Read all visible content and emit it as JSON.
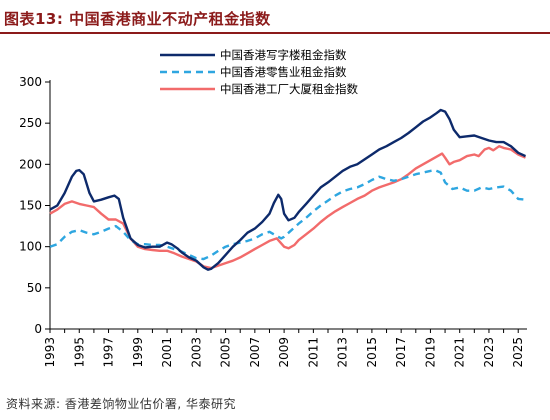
{
  "title": "图表13:  中国香港商业不动产租金指数",
  "source": "资料来源: 香港差饷物业估价署, 华泰研究",
  "colors": {
    "title": "#8b1a1a",
    "office": "#0d2a6b",
    "retail": "#2ea6e0",
    "industrial": "#f26b6b",
    "axis": "#000000"
  },
  "chart_data": {
    "type": "line",
    "title": "图表13:  中国香港商业不动产租金指数",
    "xlabel": "",
    "ylabel": "",
    "xlim": [
      1993,
      2025.6
    ],
    "ylim": [
      0,
      300
    ],
    "yticks": [
      0,
      50,
      100,
      150,
      200,
      250,
      300
    ],
    "xticks": [
      1993,
      1995,
      1997,
      1999,
      2001,
      2003,
      2005,
      2007,
      2009,
      2011,
      2013,
      2015,
      2017,
      2019,
      2021,
      2023,
      2025
    ],
    "grid": false,
    "legend_position": "top-right",
    "series": [
      {
        "name": "中国香港写字楼租金指数",
        "style": "solid",
        "color": "#0d2a6b",
        "points": [
          [
            1993,
            145
          ],
          [
            1993.5,
            150
          ],
          [
            1994,
            165
          ],
          [
            1994.5,
            185
          ],
          [
            1994.8,
            192
          ],
          [
            1995,
            193
          ],
          [
            1995.3,
            188
          ],
          [
            1995.7,
            165
          ],
          [
            1996,
            155
          ],
          [
            1996.5,
            157
          ],
          [
            1997,
            160
          ],
          [
            1997.4,
            162
          ],
          [
            1997.7,
            158
          ],
          [
            1998,
            135
          ],
          [
            1998.5,
            110
          ],
          [
            1999,
            102
          ],
          [
            1999.5,
            99
          ],
          [
            2000,
            100
          ],
          [
            2000.5,
            100
          ],
          [
            2001,
            105
          ],
          [
            2001.3,
            103
          ],
          [
            2001.7,
            98
          ],
          [
            2002,
            93
          ],
          [
            2002.5,
            87
          ],
          [
            2003,
            83
          ],
          [
            2003.5,
            75
          ],
          [
            2003.8,
            72
          ],
          [
            2004,
            73
          ],
          [
            2004.5,
            80
          ],
          [
            2005,
            90
          ],
          [
            2005.5,
            100
          ],
          [
            2006,
            108
          ],
          [
            2006.5,
            117
          ],
          [
            2007,
            122
          ],
          [
            2007.5,
            130
          ],
          [
            2008,
            140
          ],
          [
            2008.3,
            153
          ],
          [
            2008.6,
            163
          ],
          [
            2008.8,
            158
          ],
          [
            2009,
            140
          ],
          [
            2009.3,
            132
          ],
          [
            2009.7,
            135
          ],
          [
            2010,
            142
          ],
          [
            2010.5,
            152
          ],
          [
            2011,
            162
          ],
          [
            2011.5,
            172
          ],
          [
            2012,
            178
          ],
          [
            2012.5,
            185
          ],
          [
            2013,
            192
          ],
          [
            2013.5,
            197
          ],
          [
            2014,
            200
          ],
          [
            2014.5,
            206
          ],
          [
            2015,
            212
          ],
          [
            2015.5,
            218
          ],
          [
            2016,
            222
          ],
          [
            2016.5,
            227
          ],
          [
            2017,
            232
          ],
          [
            2017.5,
            238
          ],
          [
            2018,
            245
          ],
          [
            2018.5,
            252
          ],
          [
            2019,
            257
          ],
          [
            2019.4,
            262
          ],
          [
            2019.7,
            266
          ],
          [
            2020,
            264
          ],
          [
            2020.3,
            255
          ],
          [
            2020.6,
            242
          ],
          [
            2021,
            233
          ],
          [
            2021.5,
            234
          ],
          [
            2022,
            235
          ],
          [
            2022.5,
            232
          ],
          [
            2023,
            229
          ],
          [
            2023.5,
            227
          ],
          [
            2024,
            227
          ],
          [
            2024.5,
            222
          ],
          [
            2025,
            214
          ],
          [
            2025.5,
            210
          ]
        ]
      },
      {
        "name": "中国香港零售业租金指数",
        "style": "dashed",
        "color": "#2ea6e0",
        "points": [
          [
            1993,
            100
          ],
          [
            1993.5,
            103
          ],
          [
            1994,
            112
          ],
          [
            1994.5,
            118
          ],
          [
            1995,
            120
          ],
          [
            1995.5,
            117
          ],
          [
            1996,
            115
          ],
          [
            1996.5,
            118
          ],
          [
            1997,
            122
          ],
          [
            1997.5,
            125
          ],
          [
            1998,
            118
          ],
          [
            1998.5,
            108
          ],
          [
            1999,
            103
          ],
          [
            1999.5,
            103
          ],
          [
            2000,
            102
          ],
          [
            2000.5,
            102
          ],
          [
            2001,
            100
          ],
          [
            2001.5,
            97
          ],
          [
            2002,
            94
          ],
          [
            2002.5,
            90
          ],
          [
            2003,
            86
          ],
          [
            2003.5,
            85
          ],
          [
            2004,
            89
          ],
          [
            2004.5,
            95
          ],
          [
            2005,
            100
          ],
          [
            2005.5,
            103
          ],
          [
            2006,
            105
          ],
          [
            2006.5,
            107
          ],
          [
            2007,
            110
          ],
          [
            2007.5,
            115
          ],
          [
            2008,
            118
          ],
          [
            2008.5,
            113
          ],
          [
            2008.8,
            110
          ],
          [
            2009,
            112
          ],
          [
            2009.5,
            120
          ],
          [
            2010,
            128
          ],
          [
            2010.5,
            135
          ],
          [
            2011,
            143
          ],
          [
            2011.5,
            150
          ],
          [
            2012,
            156
          ],
          [
            2012.5,
            162
          ],
          [
            2013,
            167
          ],
          [
            2013.5,
            170
          ],
          [
            2014,
            172
          ],
          [
            2014.5,
            176
          ],
          [
            2015,
            181
          ],
          [
            2015.5,
            185
          ],
          [
            2016,
            182
          ],
          [
            2016.5,
            180
          ],
          [
            2017,
            182
          ],
          [
            2017.5,
            185
          ],
          [
            2018,
            188
          ],
          [
            2018.5,
            190
          ],
          [
            2019,
            192
          ],
          [
            2019.3,
            193
          ],
          [
            2019.7,
            190
          ],
          [
            2020,
            178
          ],
          [
            2020.5,
            170
          ],
          [
            2021,
            172
          ],
          [
            2021.5,
            168
          ],
          [
            2022,
            168
          ],
          [
            2022.5,
            172
          ],
          [
            2023,
            170
          ],
          [
            2023.5,
            172
          ],
          [
            2024,
            173
          ],
          [
            2024.5,
            168
          ],
          [
            2025,
            158
          ],
          [
            2025.5,
            157
          ]
        ]
      },
      {
        "name": "中国香港工厂大厦租金指数",
        "style": "solid",
        "color": "#f26b6b",
        "points": [
          [
            1993,
            140
          ],
          [
            1993.5,
            145
          ],
          [
            1994,
            152
          ],
          [
            1994.5,
            155
          ],
          [
            1995,
            152
          ],
          [
            1995.5,
            150
          ],
          [
            1996,
            148
          ],
          [
            1996.5,
            140
          ],
          [
            1997,
            133
          ],
          [
            1997.5,
            133
          ],
          [
            1998,
            128
          ],
          [
            1998.5,
            110
          ],
          [
            1999,
            100
          ],
          [
            1999.5,
            97
          ],
          [
            2000,
            96
          ],
          [
            2000.5,
            95
          ],
          [
            2001,
            95
          ],
          [
            2001.5,
            92
          ],
          [
            2002,
            88
          ],
          [
            2002.5,
            85
          ],
          [
            2003,
            82
          ],
          [
            2003.5,
            76
          ],
          [
            2004,
            74
          ],
          [
            2004.5,
            77
          ],
          [
            2005,
            80
          ],
          [
            2005.5,
            83
          ],
          [
            2006,
            87
          ],
          [
            2006.5,
            92
          ],
          [
            2007,
            97
          ],
          [
            2007.5,
            102
          ],
          [
            2008,
            107
          ],
          [
            2008.5,
            110
          ],
          [
            2009,
            100
          ],
          [
            2009.3,
            98
          ],
          [
            2009.7,
            102
          ],
          [
            2010,
            108
          ],
          [
            2010.5,
            115
          ],
          [
            2011,
            122
          ],
          [
            2011.5,
            130
          ],
          [
            2012,
            137
          ],
          [
            2012.5,
            143
          ],
          [
            2013,
            148
          ],
          [
            2013.5,
            153
          ],
          [
            2014,
            158
          ],
          [
            2014.5,
            162
          ],
          [
            2015,
            168
          ],
          [
            2015.5,
            172
          ],
          [
            2016,
            175
          ],
          [
            2016.5,
            178
          ],
          [
            2017,
            182
          ],
          [
            2017.5,
            188
          ],
          [
            2018,
            195
          ],
          [
            2018.5,
            200
          ],
          [
            2019,
            205
          ],
          [
            2019.5,
            210
          ],
          [
            2019.8,
            213
          ],
          [
            2020,
            208
          ],
          [
            2020.3,
            200
          ],
          [
            2020.6,
            203
          ],
          [
            2021,
            205
          ],
          [
            2021.5,
            210
          ],
          [
            2022,
            212
          ],
          [
            2022.3,
            210
          ],
          [
            2022.7,
            218
          ],
          [
            2023,
            220
          ],
          [
            2023.3,
            217
          ],
          [
            2023.7,
            222
          ],
          [
            2024,
            220
          ],
          [
            2024.5,
            218
          ],
          [
            2025,
            212
          ],
          [
            2025.5,
            208
          ]
        ]
      }
    ]
  }
}
